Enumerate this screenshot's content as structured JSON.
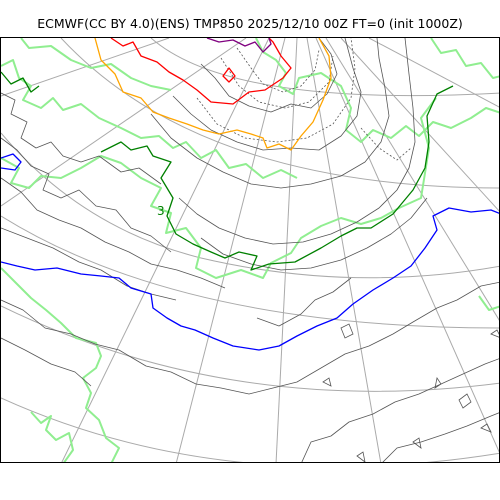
{
  "title": "ECMWF(CC BY 4.0)(ENS) TMP850 2025/12/10 00Z FT=0 (init 1000Z)",
  "contour_labels": [
    "3"
  ],
  "colors": {
    "grid": "#aaaaaa",
    "coastline": "#90ee90",
    "isotherm": "#555555",
    "isotherm_3": "#008000",
    "isotherm_0": "#0000ff",
    "isotherm_minus_3": "#ffa500",
    "isotherm_minus_6": "#ff0000",
    "isotherm_minus_9": "#800080"
  }
}
